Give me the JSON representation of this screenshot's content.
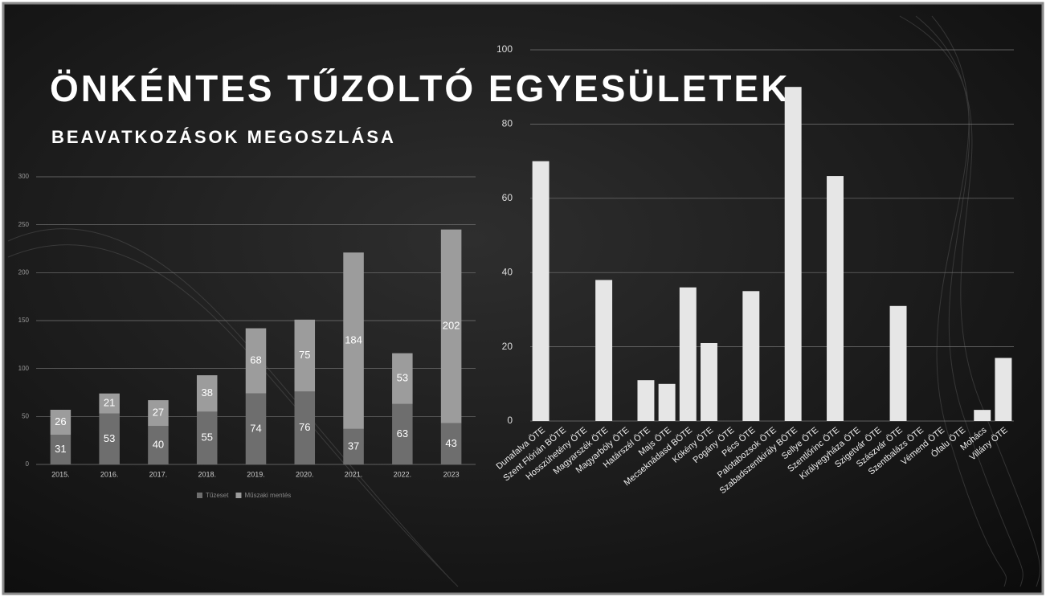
{
  "header": {
    "title": "ÖNKÉNTES TŰZOLTÓ EGYESÜLETEK",
    "subtitle": "BEAVATKOZÁSOK MEGOSZLÁSA"
  },
  "chart_data": [
    {
      "type": "stacked_bar",
      "categories": [
        "2015.",
        "2016.",
        "2017.",
        "2018.",
        "2019.",
        "2020.",
        "2021.",
        "2022.",
        "2023"
      ],
      "series": [
        {
          "name": "Tűzeset",
          "color": "#6e6e6e",
          "values": [
            31,
            53,
            40,
            55,
            74,
            76,
            37,
            63,
            43
          ]
        },
        {
          "name": "Műszaki mentés",
          "color": "#9c9c9c",
          "values": [
            26,
            21,
            27,
            38,
            68,
            75,
            184,
            53,
            202
          ]
        }
      ],
      "ylim": [
        0,
        300
      ],
      "yticks": [
        0,
        50,
        100,
        150,
        200,
        250,
        300
      ],
      "grid": true,
      "legend": "bottom"
    },
    {
      "type": "bar",
      "categories": [
        "Dunafalva ÖTE",
        "Szent Flórián BÖTE",
        "Hosszúhetény ÖTE",
        "Magyarszék ÖTE",
        "Magyarbóly ÖTE",
        "Határszél ÖTE",
        "Majs ÖTE",
        "Mecseknádasd BÖTE",
        "Kökény ÖTE",
        "Pogány ÖTE",
        "Pécs ÖTE",
        "Palotabozsok ÖTE",
        "Szabadszentkirály BÖTE",
        "Sellye ÖTE",
        "Szentlőrinc ÖTE",
        "Királyegyháza ÖTE",
        "Szigetvár ÖTE",
        "Szászvár ÖTE",
        "Szentbalázs ÖTE",
        "Vémend ÖTE",
        "Ófalu ÖTE",
        "Mohács",
        "Villány ÖTE"
      ],
      "values": [
        70,
        0,
        0,
        38,
        0,
        11,
        10,
        36,
        21,
        0,
        35,
        0,
        90,
        0,
        66,
        0,
        0,
        31,
        0,
        0,
        0,
        3,
        17
      ],
      "color": "#e6e6e6",
      "ylim": [
        0,
        100
      ],
      "yticks": [
        0,
        20,
        40,
        60,
        80,
        100
      ],
      "grid": true
    }
  ]
}
